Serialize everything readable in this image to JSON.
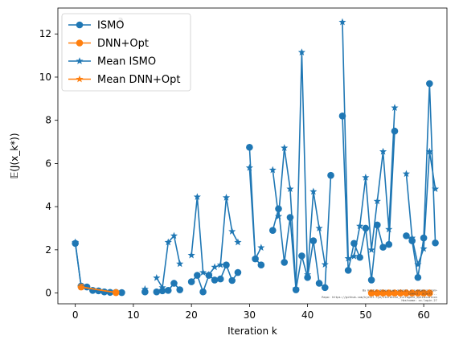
{
  "chart_data": {
    "type": "line",
    "xlabel": "Iteration k",
    "ylabel": "𝔼(J(x_k*))",
    "xlim": [
      -3,
      64
    ],
    "ylim": [
      -0.5,
      13.2
    ],
    "xticks": [
      0,
      10,
      20,
      30,
      40,
      50,
      60
    ],
    "yticks": [
      0,
      2,
      4,
      6,
      8,
      10,
      12
    ],
    "grid": false,
    "legend_position": "top-left",
    "overlay_text": "a",
    "note_lines": [
      "By Kjetil Olsen Lye <kjetil.o.lye@gmail.com>",
      "Commit: 3c5ef5...",
      "Repo: https://github.com/kjetil-lye/iterative_surrogate_optimization",
      "Hostname: xx.login.27"
    ],
    "series": [
      {
        "name": "ISMO",
        "color": "#1f77b4",
        "marker": "circle",
        "points": [
          [
            0,
            2.3
          ],
          [
            1,
            0.32
          ],
          [
            2,
            0.28
          ],
          [
            3,
            0.12
          ],
          [
            4,
            0.1
          ],
          [
            5,
            0.05
          ],
          [
            6,
            0.03
          ],
          [
            7,
            0.03
          ],
          [
            8,
            0.02
          ],
          [
            null,
            null
          ],
          [
            12,
            0.05
          ],
          [
            13,
            null
          ],
          [
            14,
            0.05
          ],
          [
            15,
            0.1
          ],
          [
            16,
            0.12
          ],
          [
            17,
            0.45
          ],
          [
            18,
            0.15
          ],
          [
            null,
            null
          ],
          [
            20,
            0.52
          ],
          [
            21,
            0.82
          ],
          [
            22,
            0.05
          ],
          [
            23,
            0.82
          ],
          [
            24,
            0.6
          ],
          [
            25,
            0.65
          ],
          [
            26,
            1.3
          ],
          [
            27,
            0.58
          ],
          [
            28,
            0.95
          ],
          [
            null,
            null
          ],
          [
            30,
            6.75
          ],
          [
            31,
            1.58
          ],
          [
            32,
            1.3
          ],
          [
            null,
            null
          ],
          [
            34,
            2.9
          ],
          [
            35,
            3.9
          ],
          [
            36,
            1.42
          ],
          [
            37,
            3.5
          ],
          [
            38,
            0.15
          ],
          [
            39,
            1.72
          ],
          [
            40,
            0.72
          ],
          [
            41,
            2.42
          ],
          [
            42,
            0.45
          ],
          [
            43,
            0.25
          ],
          [
            44,
            5.45
          ],
          [
            null,
            null
          ],
          [
            46,
            8.2
          ],
          [
            47,
            1.05
          ],
          [
            48,
            2.3
          ],
          [
            49,
            1.65
          ],
          [
            50,
            3.0
          ],
          [
            51,
            0.6
          ],
          [
            52,
            3.15
          ],
          [
            53,
            2.12
          ],
          [
            54,
            2.25
          ],
          [
            55,
            7.5
          ],
          [
            null,
            null
          ],
          [
            57,
            2.65
          ],
          [
            58,
            2.42
          ],
          [
            59,
            0.72
          ],
          [
            60,
            2.55
          ],
          [
            61,
            9.7
          ],
          [
            62,
            2.32
          ]
        ]
      },
      {
        "name": "DNN+Opt",
        "color": "#ff7f0e",
        "marker": "circle",
        "points": [
          [
            1,
            0.28
          ],
          [
            7,
            0.02
          ],
          [
            null,
            null
          ],
          [
            51,
            0.0
          ],
          [
            52,
            0.0
          ],
          [
            53,
            0.0
          ],
          [
            54,
            0.0
          ],
          [
            55,
            0.0
          ],
          [
            56,
            0.0
          ],
          [
            57,
            0.0
          ],
          [
            58,
            0.0
          ],
          [
            59,
            0.0
          ],
          [
            60,
            0.0
          ],
          [
            61,
            0.0
          ]
        ]
      },
      {
        "name": "Mean ISMO",
        "color": "#1f77b4",
        "marker": "star",
        "points": [
          [
            0,
            2.35
          ],
          [
            1,
            0.3
          ],
          [
            null,
            null
          ],
          [
            12,
            0.18
          ],
          [
            null,
            null
          ],
          [
            14,
            0.7
          ],
          [
            15,
            0.25
          ],
          [
            16,
            2.35
          ],
          [
            17,
            2.65
          ],
          [
            18,
            1.35
          ],
          [
            null,
            null
          ],
          [
            20,
            1.75
          ],
          [
            21,
            4.45
          ],
          [
            22,
            0.95
          ],
          [
            23,
            0.85
          ],
          [
            24,
            1.2
          ],
          [
            25,
            1.3
          ],
          [
            26,
            4.42
          ],
          [
            27,
            2.85
          ],
          [
            28,
            2.35
          ],
          [
            null,
            null
          ],
          [
            30,
            5.8
          ],
          [
            31,
            1.58
          ],
          [
            32,
            2.1
          ],
          [
            null,
            null
          ],
          [
            34,
            5.7
          ],
          [
            35,
            3.55
          ],
          [
            36,
            6.72
          ],
          [
            37,
            4.82
          ],
          [
            38,
            0.2
          ],
          [
            39,
            11.15
          ],
          [
            40,
            0.85
          ],
          [
            41,
            4.7
          ],
          [
            42,
            3.0
          ],
          [
            43,
            1.32
          ],
          [
            null,
            null
          ],
          [
            46,
            12.55
          ],
          [
            47,
            1.6
          ],
          [
            48,
            1.7
          ],
          [
            49,
            3.1
          ],
          [
            50,
            5.35
          ],
          [
            51,
            2.0
          ],
          [
            52,
            4.25
          ],
          [
            53,
            6.55
          ],
          [
            54,
            2.95
          ],
          [
            55,
            8.58
          ],
          [
            null,
            null
          ],
          [
            57,
            5.52
          ],
          [
            58,
            2.55
          ],
          [
            59,
            1.32
          ],
          [
            60,
            2.05
          ],
          [
            61,
            6.55
          ],
          [
            62,
            4.82
          ]
        ]
      },
      {
        "name": "Mean DNN+Opt",
        "color": "#ff7f0e",
        "marker": "star",
        "points": [
          [
            1,
            0.28
          ],
          [
            7,
            0.02
          ],
          [
            null,
            null
          ],
          [
            51,
            0.0
          ],
          [
            52,
            0.0
          ],
          [
            53,
            0.0
          ],
          [
            54,
            0.0
          ],
          [
            55,
            0.0
          ],
          [
            56,
            0.0
          ],
          [
            57,
            0.0
          ],
          [
            58,
            0.0
          ],
          [
            59,
            0.0
          ],
          [
            60,
            0.0
          ],
          [
            61,
            0.0
          ]
        ]
      }
    ]
  }
}
